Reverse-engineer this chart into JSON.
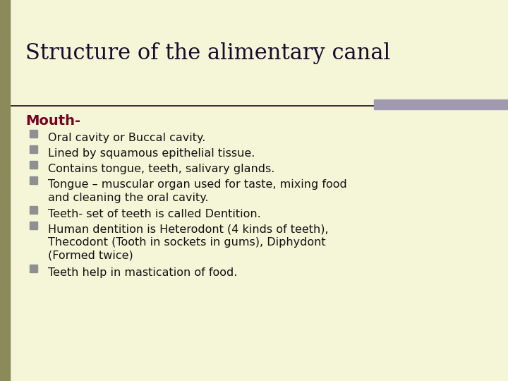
{
  "title": "Structure of the alimentary canal",
  "title_color": "#1a0a2e",
  "title_fontsize": 22,
  "subtitle": "Mouth-",
  "subtitle_color": "#7a0020",
  "subtitle_fontsize": 14,
  "background_color": "#f5f5d8",
  "left_bar_color": "#8a8a5a",
  "right_bar_color": "#a09ab0",
  "separator_line_color": "#1a0a10",
  "bullet_color": "#909090",
  "text_color": "#111111",
  "text_fontsize": 11.5,
  "bullet_items": [
    "Oral cavity or Buccal cavity.",
    "Lined by squamous epithelial tissue.",
    "Contains tongue, teeth, salivary glands.",
    "Tongue – muscular organ used for taste, mixing food\nand cleaning the oral cavity.",
    "Teeth- set of teeth is called Dentition.",
    "Human dentition is Heterodont (4 kinds of teeth),\nThecodont (Tooth in sockets in gums), Diphydont\n(Formed twice)",
    "Teeth help in mastication of food."
  ]
}
